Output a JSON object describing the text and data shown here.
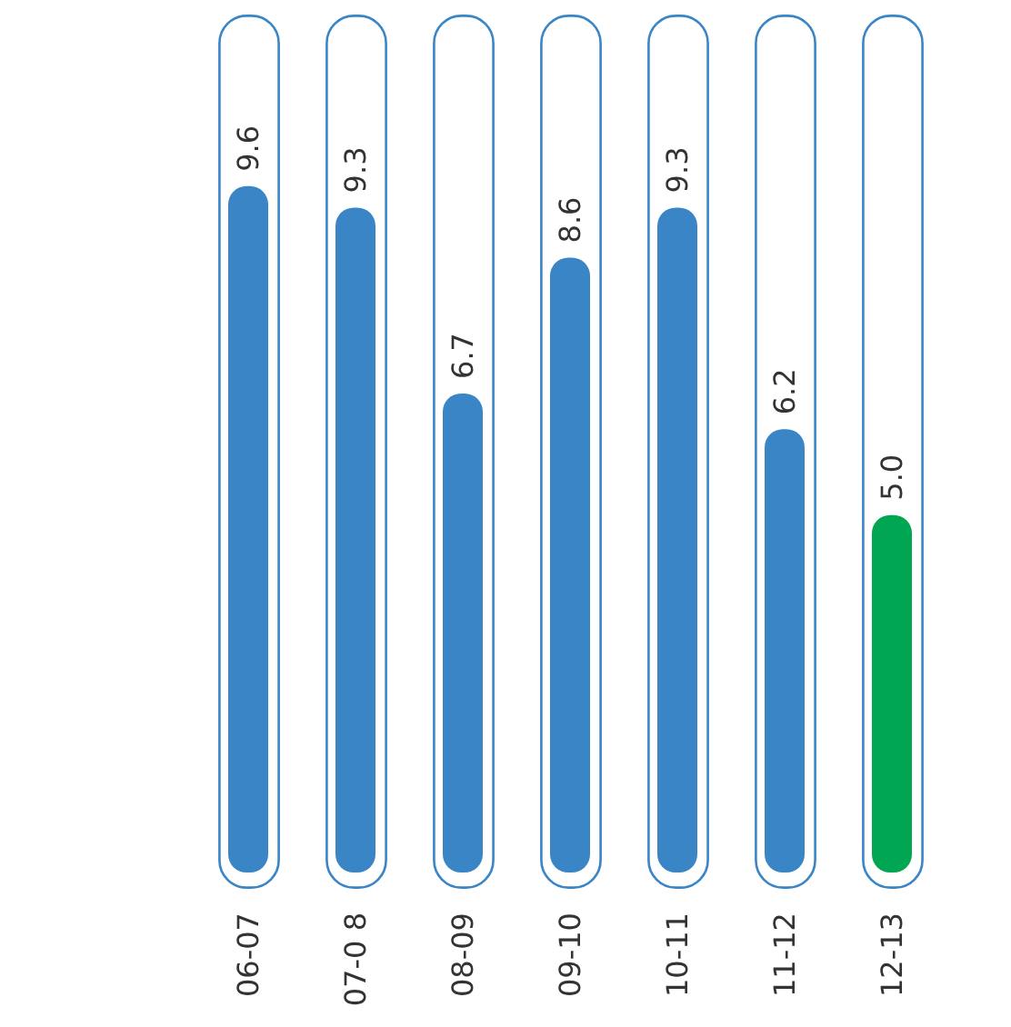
{
  "chart_data": {
    "type": "bar",
    "categories": [
      "06-07",
      "07-0 8",
      "08-09",
      "09-10",
      "10-11",
      "11-12",
      "12-13"
    ],
    "values": [
      9.6,
      9.3,
      6.7,
      8.6,
      9.3,
      6.2,
      5.0
    ],
    "value_labels": [
      "9.6",
      "9.3",
      "6.7",
      "8.6",
      "9.3",
      "6.2",
      "5.0"
    ],
    "colors": [
      "#3a85c6",
      "#3a85c6",
      "#3a85c6",
      "#3a85c6",
      "#3a85c6",
      "#3a85c6",
      "#00a651"
    ],
    "tick_labels": "x"
  }
}
